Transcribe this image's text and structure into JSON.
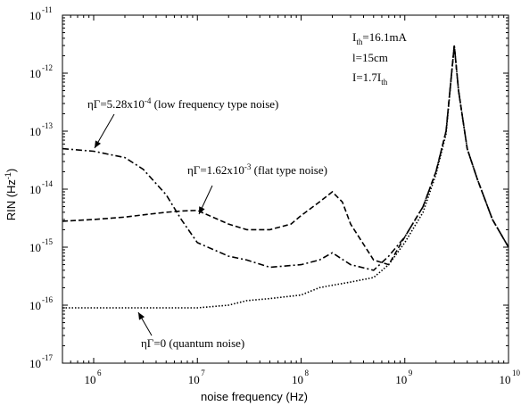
{
  "chart_data": {
    "type": "line",
    "title": "",
    "xlabel": "noise frequency (Hz)",
    "ylabel_main": "RIN (Hz",
    "ylabel_sup": "-1",
    "ylabel_close": ")",
    "x_scale": "log",
    "y_scale": "log",
    "xlim": [
      500000,
      10000000000
    ],
    "ylim": [
      1e-17,
      1e-11
    ],
    "x_ticks": [
      {
        "base": "10",
        "exp": "6",
        "value": 1000000
      },
      {
        "base": "10",
        "exp": "7",
        "value": 10000000
      },
      {
        "base": "10",
        "exp": "8",
        "value": 100000000
      },
      {
        "base": "10",
        "exp": "9",
        "value": 1000000000
      },
      {
        "base": "10",
        "exp": "10",
        "value": 10000000000
      }
    ],
    "y_ticks": [
      {
        "base": "10",
        "exp": "-11",
        "value": 1e-11
      },
      {
        "base": "10",
        "exp": "-12",
        "value": 1e-12
      },
      {
        "base": "10",
        "exp": "-13",
        "value": 1e-13
      },
      {
        "base": "10",
        "exp": "-14",
        "value": 1e-14
      },
      {
        "base": "10",
        "exp": "-15",
        "value": 1e-15
      },
      {
        "base": "10",
        "exp": "-16",
        "value": 1e-16
      },
      {
        "base": "10",
        "exp": "-17",
        "value": 1e-17
      }
    ],
    "grid": false,
    "legend": "none",
    "series": [
      {
        "style": "dash-dot",
        "x": [
          500000,
          1000000,
          2000000,
          3000000,
          5000000,
          7000000,
          10000000,
          20000000,
          30000000,
          50000000,
          100000000,
          150000000,
          200000000,
          300000000,
          500000000,
          700000000,
          1000000000,
          1500000000,
          2000000000,
          2500000000,
          3000000000,
          3300000000,
          4000000000,
          5000000000,
          7000000000,
          10000000000
        ],
        "y": [
          5e-14,
          4.5e-14,
          3.5e-14,
          2.2e-14,
          8e-15,
          3e-15,
          1.2e-15,
          7e-16,
          6e-16,
          4.5e-16,
          5e-16,
          6e-16,
          8e-16,
          5e-16,
          4e-16,
          7e-16,
          1.5e-15,
          5e-15,
          2e-14,
          1e-13,
          3e-12,
          5e-13,
          5e-14,
          1.5e-14,
          3e-15,
          1e-15
        ]
      },
      {
        "style": "dash",
        "x": [
          500000,
          1000000,
          2000000,
          3000000,
          5000000,
          7000000,
          10000000,
          20000000,
          30000000,
          50000000,
          80000000,
          100000000,
          150000000,
          200000000,
          250000000,
          300000000,
          500000000,
          700000000,
          1000000000,
          1500000000,
          2000000000,
          2500000000,
          3000000000,
          3300000000,
          4000000000,
          5000000000,
          7000000000,
          10000000000
        ],
        "y": [
          2.8e-15,
          3e-15,
          3.3e-15,
          3.6e-15,
          4e-15,
          4.2e-15,
          4.3e-15,
          2.5e-15,
          2e-15,
          2e-15,
          2.5e-15,
          3.5e-15,
          6e-15,
          9e-15,
          6e-15,
          2.5e-15,
          6e-16,
          5e-16,
          1.5e-15,
          5e-15,
          2e-14,
          1e-13,
          3e-12,
          5e-13,
          5e-14,
          1.5e-14,
          3e-15,
          1e-15
        ]
      },
      {
        "style": "dotted",
        "x": [
          500000,
          1000000,
          2000000,
          3000000,
          5000000,
          10000000,
          20000000,
          30000000,
          50000000,
          100000000,
          150000000,
          200000000,
          300000000,
          500000000,
          700000000,
          1000000000,
          1500000000,
          2000000000,
          2500000000,
          3000000000,
          3300000000,
          4000000000,
          5000000000,
          7000000000,
          10000000000
        ],
        "y": [
          9e-17,
          9e-17,
          9e-17,
          9e-17,
          9e-17,
          9e-17,
          1e-16,
          1.2e-16,
          1.3e-16,
          1.5e-16,
          2e-16,
          2.2e-16,
          2.5e-16,
          3e-16,
          5e-16,
          1.2e-15,
          4e-15,
          1.8e-14,
          9e-14,
          3e-12,
          5e-13,
          5e-14,
          1.5e-14,
          3e-15,
          1e-15
        ]
      }
    ],
    "annotations": {
      "params": {
        "ith_main": "I",
        "ith_sub": "th",
        "ith_val": "=16.1mA",
        "length": "l=15cm",
        "i_main": "I=1.7I",
        "i_sub": "th"
      },
      "low_freq": {
        "eta": "ηΓ=5.28x10",
        "exp": "-4",
        "desc": " (low frequency type noise)"
      },
      "flat": {
        "eta": "ηΓ=1.62x10",
        "exp": "-3",
        "desc": " (flat type noise)"
      },
      "quantum": {
        "text": "ηΓ=0 (quantum noise)"
      }
    }
  }
}
